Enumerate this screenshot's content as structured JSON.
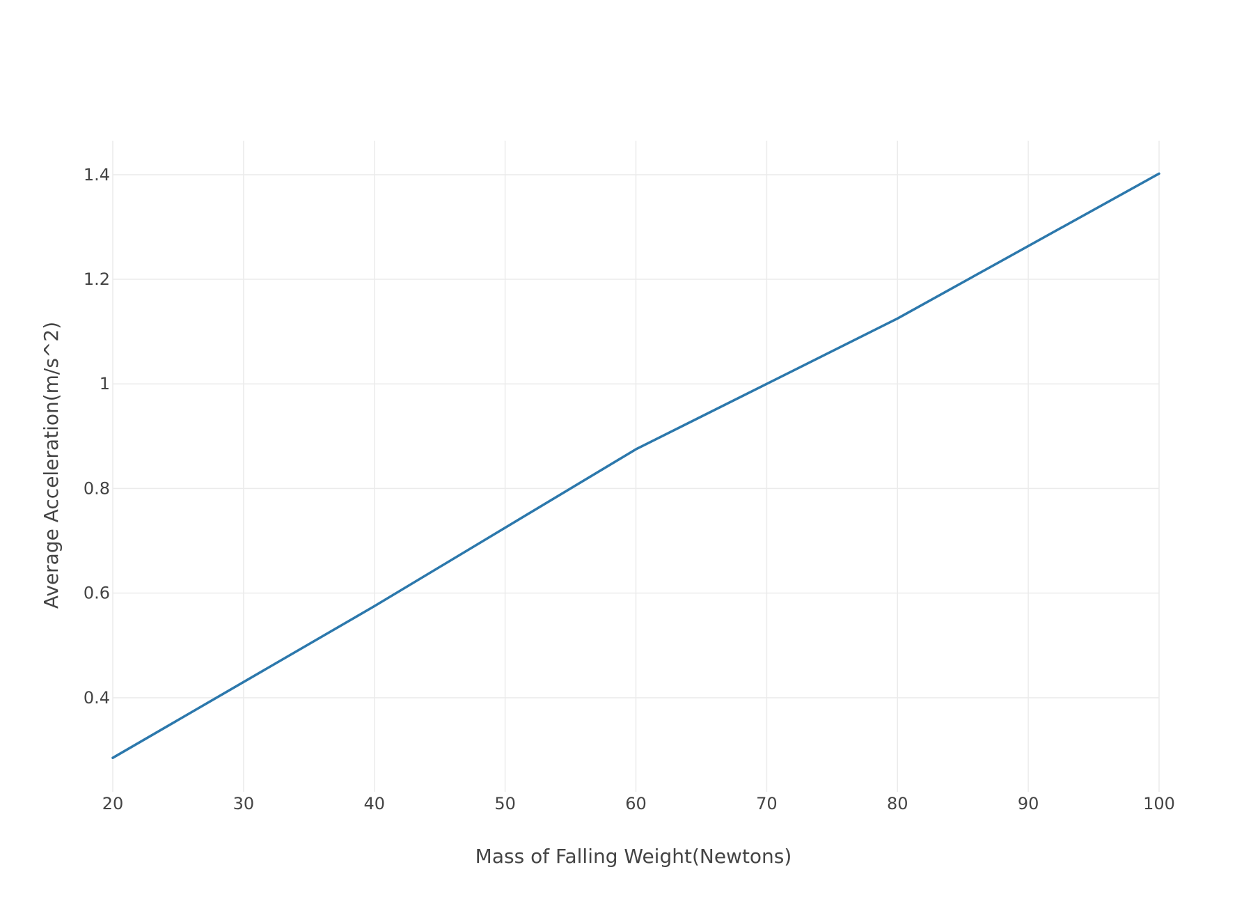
{
  "chart_data": {
    "type": "line",
    "title": "",
    "xlabel": "Mass of Falling Weight(Newtons)",
    "ylabel": "Average Acceleration(m/s^2)",
    "xlim": [
      20,
      100
    ],
    "ylim": [
      0.22,
      1.465
    ],
    "x_ticks": [
      20,
      30,
      40,
      50,
      60,
      70,
      80,
      90,
      100
    ],
    "y_ticks": [
      0.4,
      0.6,
      0.8,
      1,
      1.2,
      1.4
    ],
    "x_tick_labels": [
      "20",
      "30",
      "40",
      "50",
      "60",
      "70",
      "80",
      "90",
      "100"
    ],
    "y_tick_labels": [
      "0.4",
      "0.6",
      "0.8",
      "1",
      "1.2",
      "1.4"
    ],
    "grid": true,
    "legend": "none",
    "series": [
      {
        "color": "#2c78ac",
        "x": [
          20,
          40,
          60,
          80,
          100
        ],
        "y": [
          0.285,
          0.575,
          0.875,
          1.125,
          1.402
        ]
      }
    ]
  }
}
